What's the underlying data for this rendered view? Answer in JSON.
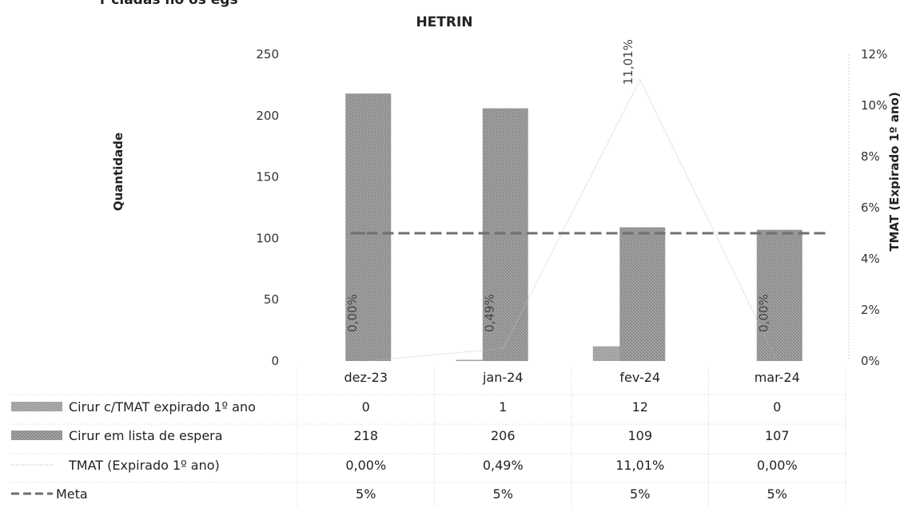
{
  "chart_data": {
    "type": "bar",
    "title_partial": "HETRIN",
    "title_fragment_top": "r ciadas no os egs",
    "categories": [
      "dez-23",
      "jan-24",
      "fev-24",
      "mar-24"
    ],
    "ylabel": "Quantidade",
    "y2label": "TMAT (Expirado 1º ano)",
    "ylim": [
      0,
      250
    ],
    "y_ticks": [
      "0",
      "50",
      "100",
      "150",
      "200",
      "250"
    ],
    "y2lim": [
      0,
      12
    ],
    "y2_ticks": [
      "0%",
      "2%",
      "4%",
      "6%",
      "8%",
      "10%",
      "12%"
    ],
    "series": [
      {
        "name": "Cirur c/TMAT expirado 1º ano",
        "kind": "bar",
        "axis": "left",
        "color": "#9a9a9a",
        "values": [
          0,
          1,
          12,
          0
        ],
        "labels": [
          "0",
          "1",
          "12",
          "0"
        ]
      },
      {
        "name": "Cirur em lista de espera",
        "kind": "bar",
        "axis": "left",
        "color": "#a6a6a6",
        "values": [
          218,
          206,
          109,
          107
        ],
        "labels": [
          "218",
          "206",
          "109",
          "107"
        ]
      },
      {
        "name": "TMAT (Expirado 1º ano)",
        "kind": "line",
        "axis": "right",
        "color": "#c8c8c8",
        "values": [
          0.0,
          0.49,
          11.01,
          0.0
        ],
        "labels": [
          "0,00%",
          "0,49%",
          "11,01%",
          "0,00%"
        ]
      },
      {
        "name": "Meta",
        "kind": "dashed-line",
        "axis": "right",
        "color": "#6e6e6e",
        "values": [
          5,
          5,
          5,
          5
        ],
        "labels": [
          "5%",
          "5%",
          "5%",
          "5%"
        ]
      }
    ]
  }
}
